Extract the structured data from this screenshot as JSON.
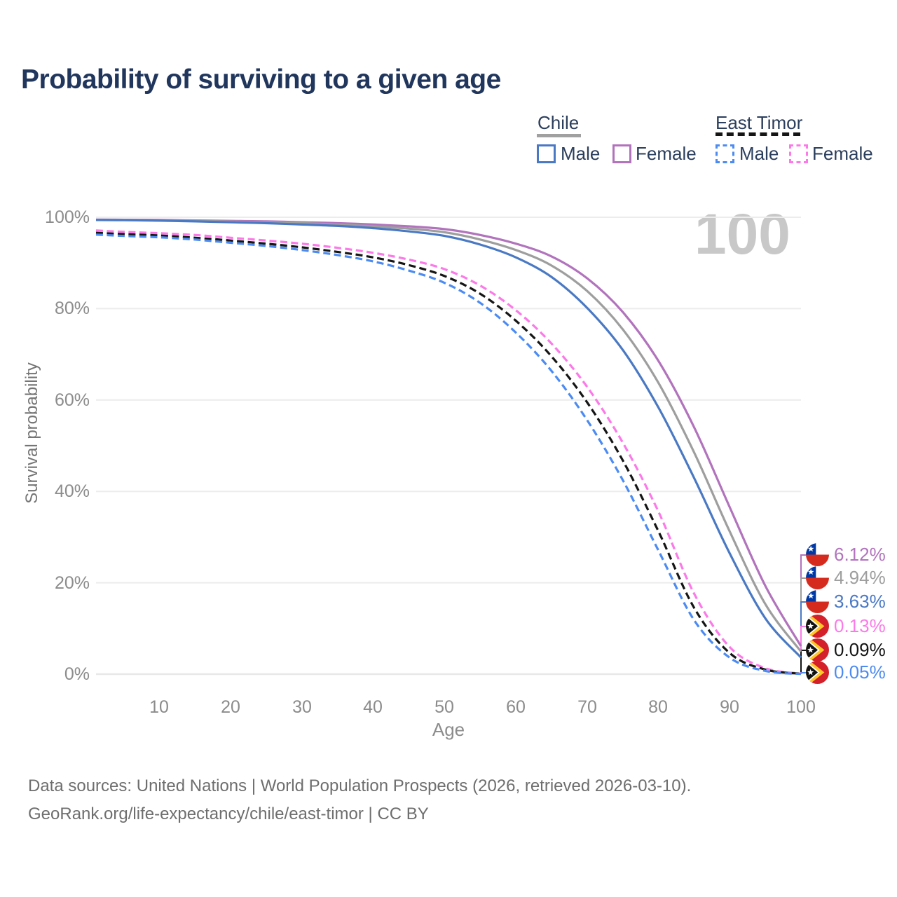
{
  "title": "Probability of surviving to a given age",
  "watermark_age": "100",
  "legend": {
    "groups": [
      {
        "label": "Chile",
        "items": [
          {
            "label": "Male"
          },
          {
            "label": "Female"
          }
        ]
      },
      {
        "label": "East Timor",
        "items": [
          {
            "label": "Male"
          },
          {
            "label": "Female"
          }
        ]
      }
    ]
  },
  "colors": {
    "title": "#20365c",
    "legend_text": "#2b3e5c",
    "axis_text": "#8c8c8c",
    "gridline": "#ececec",
    "watermark": "#c8c8c8",
    "footer_text": "#6e6e6e",
    "chile_male": "#4a79c4",
    "chile_female": "#b273bd",
    "chile_total": "#9e9e9e",
    "east_timor_male": "#4b8bf2",
    "east_timor_female": "#fb7ae8",
    "east_timor_total": "#151515"
  },
  "chart_data": {
    "type": "line",
    "title": "Probability of surviving to a given age",
    "xlabel": "Age",
    "ylabel": "Survival probability",
    "xlim": [
      1,
      100
    ],
    "ylim": [
      0,
      100
    ],
    "grid": "horizontal",
    "x_ticks": [
      10,
      20,
      30,
      40,
      50,
      60,
      70,
      80,
      90,
      100
    ],
    "x_tick_labels": [
      "10",
      "20",
      "30",
      "40",
      "50",
      "60",
      "70",
      "80",
      "90",
      "100"
    ],
    "y_ticks": [
      0,
      20,
      40,
      60,
      80,
      100
    ],
    "y_tick_labels": [
      "0%",
      "20%",
      "40%",
      "60%",
      "80%",
      "100%"
    ],
    "ages": [
      1,
      5,
      10,
      15,
      20,
      25,
      30,
      35,
      40,
      45,
      50,
      55,
      60,
      65,
      70,
      75,
      80,
      85,
      90,
      95,
      100
    ],
    "series": [
      {
        "name": "Chile Female",
        "group": "Chile",
        "sex": "Female",
        "style": "solid",
        "color": "#b273bd",
        "flag": "chile",
        "end_label": "6.12%",
        "end_value": 6.12,
        "values": [
          99.5,
          99.45,
          99.4,
          99.3,
          99.2,
          99.1,
          98.9,
          98.7,
          98.4,
          98.0,
          97.4,
          96.1,
          94.2,
          91.4,
          86.6,
          79.2,
          68.5,
          54.0,
          36.5,
          19.3,
          6.12
        ]
      },
      {
        "name": "Chile",
        "group": "Chile",
        "sex": "Both",
        "style": "solid",
        "color": "#9e9e9e",
        "flag": "chile",
        "end_label": "4.94%",
        "end_value": 4.94,
        "values": [
          99.45,
          99.4,
          99.3,
          99.2,
          99.05,
          98.9,
          98.7,
          98.4,
          98.0,
          97.5,
          96.7,
          95.1,
          92.8,
          89.4,
          83.8,
          75.4,
          63.7,
          48.5,
          31.2,
          15.3,
          4.94
        ]
      },
      {
        "name": "Chile Male",
        "group": "Chile",
        "sex": "Male",
        "style": "solid",
        "color": "#4a79c4",
        "flag": "chile",
        "end_label": "3.63%",
        "end_value": 3.63,
        "values": [
          99.4,
          99.35,
          99.25,
          99.1,
          98.9,
          98.7,
          98.4,
          98.1,
          97.6,
          96.9,
          95.9,
          94.0,
          91.2,
          86.9,
          80.1,
          70.9,
          58.3,
          42.9,
          26.4,
          12.2,
          3.63
        ]
      },
      {
        "name": "East Timor Female",
        "group": "East Timor",
        "sex": "Female",
        "style": "dashed",
        "color": "#fb7ae8",
        "flag": "east-timor",
        "end_label": "0.13%",
        "end_value": 0.13,
        "values": [
          97.1,
          96.8,
          96.5,
          96.1,
          95.5,
          94.9,
          94.2,
          93.3,
          92.2,
          90.7,
          88.6,
          85.0,
          79.6,
          72.3,
          62.8,
          50.6,
          35.5,
          17.6,
          5.9,
          1.3,
          0.13
        ]
      },
      {
        "name": "East Timor",
        "group": "East Timor",
        "sex": "Both",
        "style": "dashed",
        "color": "#151515",
        "flag": "east-timor",
        "end_label": "0.09%",
        "end_value": 0.09,
        "values": [
          96.6,
          96.3,
          96.0,
          95.5,
          94.9,
          94.2,
          93.4,
          92.4,
          91.2,
          89.5,
          87.1,
          83.2,
          77.3,
          69.5,
          59.4,
          46.7,
          31.2,
          14.5,
          4.6,
          1.0,
          0.09
        ]
      },
      {
        "name": "East Timor Male",
        "group": "East Timor",
        "sex": "Male",
        "style": "dashed",
        "color": "#4b8bf2",
        "flag": "east-timor",
        "end_label": "0.05%",
        "end_value": 0.05,
        "values": [
          96.2,
          95.9,
          95.6,
          95.1,
          94.4,
          93.7,
          92.8,
          91.7,
          90.3,
          88.3,
          85.6,
          81.2,
          74.7,
          66.3,
          55.5,
          42.4,
          27.0,
          11.8,
          3.6,
          0.7,
          0.05
        ]
      }
    ]
  },
  "footer": {
    "line1": "Data sources: United Nations | World Population Prospects (2026, retrieved 2026-03-10).",
    "line2": "GeoRank.org/life-expectancy/chile/east-timor | CC BY"
  }
}
